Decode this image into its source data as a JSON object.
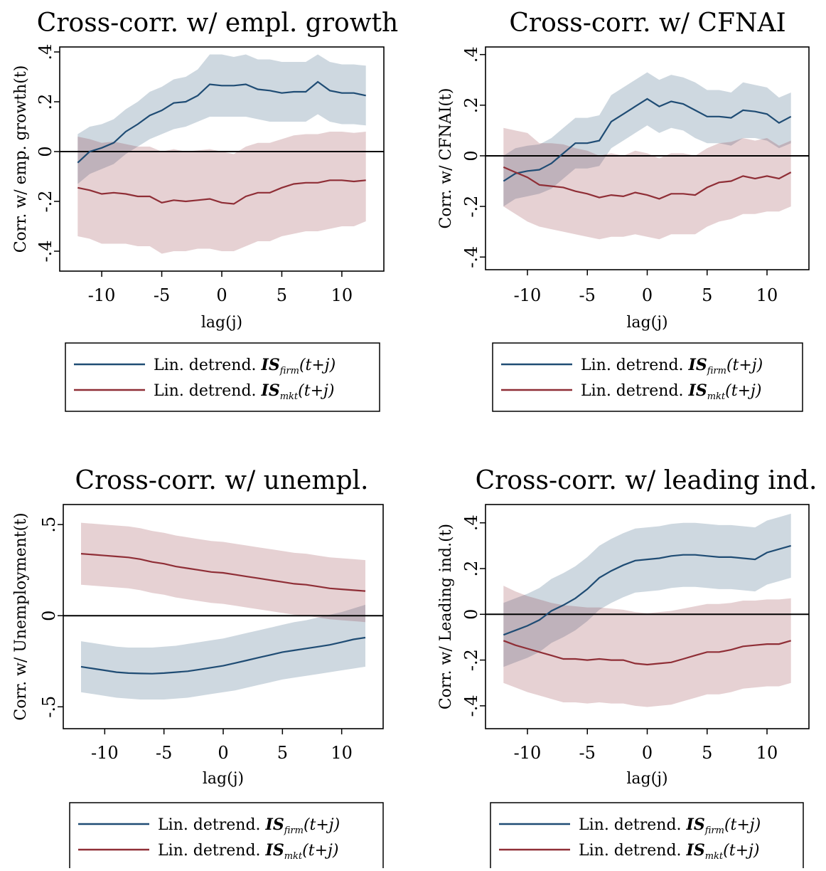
{
  "chart_data": [
    {
      "type": "line",
      "title": "Cross-corr. w/ empl. growth",
      "xlabel": "lag(j)",
      "ylabel": "Corr. w/ emp. growth(t)",
      "xlim": [
        -13.5,
        13.5
      ],
      "ylim": [
        -0.48,
        0.42
      ],
      "xticks": [
        "-10",
        "-5",
        "0",
        "5",
        "10"
      ],
      "yticks": [
        "-.4",
        "-.2",
        "0",
        ".2",
        ".4"
      ],
      "x": [
        -12,
        -11,
        -10,
        -9,
        -8,
        -7,
        -6,
        -5,
        -4,
        -3,
        -2,
        -1,
        0,
        1,
        2,
        3,
        4,
        5,
        6,
        7,
        8,
        9,
        10,
        11,
        12
      ],
      "series": [
        {
          "name": "Lin. detrend. IS_firm(t+j)",
          "color": "#1f4c74",
          "values": [
            -0.045,
            0.0,
            0.015,
            0.035,
            0.08,
            0.11,
            0.145,
            0.165,
            0.195,
            0.2,
            0.225,
            0.27,
            0.265,
            0.265,
            0.27,
            0.25,
            0.245,
            0.235,
            0.24,
            0.24,
            0.28,
            0.245,
            0.235,
            0.235,
            0.225
          ],
          "lower": [
            -0.13,
            -0.09,
            -0.07,
            -0.05,
            -0.01,
            0.02,
            0.05,
            0.07,
            0.09,
            0.1,
            0.12,
            0.14,
            0.14,
            0.14,
            0.14,
            0.13,
            0.12,
            0.12,
            0.12,
            0.12,
            0.15,
            0.12,
            0.11,
            0.11,
            0.105
          ],
          "upper": [
            0.07,
            0.1,
            0.11,
            0.13,
            0.17,
            0.2,
            0.24,
            0.26,
            0.29,
            0.3,
            0.33,
            0.39,
            0.39,
            0.38,
            0.39,
            0.37,
            0.37,
            0.36,
            0.36,
            0.36,
            0.39,
            0.36,
            0.35,
            0.35,
            0.345
          ]
        },
        {
          "name": "Lin. detrend. IS_mkt(t+j)",
          "color": "#8f2e36",
          "values": [
            -0.145,
            -0.155,
            -0.17,
            -0.165,
            -0.17,
            -0.18,
            -0.18,
            -0.205,
            -0.195,
            -0.2,
            -0.195,
            -0.19,
            -0.205,
            -0.21,
            -0.18,
            -0.165,
            -0.165,
            -0.145,
            -0.13,
            -0.125,
            -0.125,
            -0.115,
            -0.115,
            -0.12,
            -0.115
          ],
          "lower": [
            -0.34,
            -0.35,
            -0.37,
            -0.37,
            -0.37,
            -0.38,
            -0.38,
            -0.41,
            -0.4,
            -0.4,
            -0.39,
            -0.39,
            -0.4,
            -0.4,
            -0.38,
            -0.36,
            -0.36,
            -0.34,
            -0.33,
            -0.32,
            -0.32,
            -0.31,
            -0.3,
            -0.3,
            -0.28
          ],
          "upper": [
            0.06,
            0.05,
            0.035,
            0.04,
            0.03,
            0.02,
            0.02,
            0.0,
            0.01,
            0.0,
            0.005,
            0.01,
            0.0,
            -0.01,
            0.02,
            0.035,
            0.035,
            0.05,
            0.065,
            0.07,
            0.07,
            0.08,
            0.08,
            0.075,
            0.08
          ]
        }
      ]
    },
    {
      "type": "line",
      "title": "Cross-corr. w/ CFNAI",
      "xlabel": "lag(j)",
      "ylabel": "Corr. w/ CFNAI(t)",
      "xlim": [
        -13.5,
        13.5
      ],
      "ylim": [
        -0.45,
        0.43
      ],
      "xticks": [
        "-10",
        "-5",
        "0",
        "5",
        "10"
      ],
      "yticks": [
        "-.4",
        "-.2",
        "0",
        ".2",
        ".4"
      ],
      "x": [
        -12,
        -11,
        -10,
        -9,
        -8,
        -7,
        -6,
        -5,
        -4,
        -3,
        -2,
        -1,
        0,
        1,
        2,
        3,
        4,
        5,
        6,
        7,
        8,
        9,
        10,
        11,
        12
      ],
      "series": [
        {
          "name": "Lin. detrend. IS_firm(t+j)",
          "color": "#1f4c74",
          "values": [
            -0.1,
            -0.07,
            -0.06,
            -0.055,
            -0.03,
            0.01,
            0.05,
            0.05,
            0.06,
            0.135,
            0.165,
            0.195,
            0.225,
            0.195,
            0.215,
            0.205,
            0.18,
            0.155,
            0.155,
            0.15,
            0.18,
            0.175,
            0.165,
            0.13,
            0.155
          ],
          "lower": [
            -0.2,
            -0.17,
            -0.16,
            -0.15,
            -0.13,
            -0.09,
            -0.05,
            -0.05,
            -0.04,
            0.03,
            0.06,
            0.09,
            0.12,
            0.09,
            0.11,
            0.1,
            0.07,
            0.05,
            0.05,
            0.04,
            0.07,
            0.07,
            0.06,
            0.03,
            0.05
          ],
          "upper": [
            0.0,
            0.03,
            0.04,
            0.045,
            0.07,
            0.11,
            0.15,
            0.15,
            0.16,
            0.24,
            0.27,
            0.3,
            0.33,
            0.3,
            0.32,
            0.31,
            0.29,
            0.26,
            0.26,
            0.25,
            0.29,
            0.28,
            0.27,
            0.23,
            0.25
          ]
        },
        {
          "name": "Lin. detrend. IS_mkt(t+j)",
          "color": "#8f2e36",
          "values": [
            -0.045,
            -0.065,
            -0.085,
            -0.115,
            -0.12,
            -0.125,
            -0.14,
            -0.15,
            -0.165,
            -0.155,
            -0.16,
            -0.145,
            -0.155,
            -0.17,
            -0.15,
            -0.15,
            -0.155,
            -0.125,
            -0.105,
            -0.1,
            -0.08,
            -0.09,
            -0.08,
            -0.09,
            -0.065
          ],
          "lower": [
            -0.2,
            -0.23,
            -0.26,
            -0.28,
            -0.29,
            -0.3,
            -0.31,
            -0.32,
            -0.33,
            -0.32,
            -0.32,
            -0.31,
            -0.32,
            -0.33,
            -0.31,
            -0.31,
            -0.31,
            -0.28,
            -0.26,
            -0.25,
            -0.23,
            -0.23,
            -0.22,
            -0.22,
            -0.2
          ],
          "upper": [
            0.11,
            0.1,
            0.09,
            0.05,
            0.05,
            0.045,
            0.03,
            0.02,
            0.0,
            0.01,
            0.0,
            0.02,
            0.01,
            -0.01,
            0.01,
            0.01,
            0.0,
            0.03,
            0.05,
            0.055,
            0.07,
            0.06,
            0.07,
            0.04,
            0.06
          ]
        }
      ]
    },
    {
      "type": "line",
      "title": "Cross-corr. w/ unempl.",
      "xlabel": "lag(j)",
      "ylabel": "Corr. w/ Unemployment(t)",
      "xlim": [
        -13.5,
        13.5
      ],
      "ylim": [
        -0.62,
        0.61
      ],
      "xticks": [
        "-10",
        "-5",
        "0",
        "5",
        "10"
      ],
      "yticks": [
        "-.5",
        "0",
        ".5"
      ],
      "x": [
        -12,
        -11,
        -10,
        -9,
        -8,
        -7,
        -6,
        -5,
        -4,
        -3,
        -2,
        -1,
        0,
        1,
        2,
        3,
        4,
        5,
        6,
        7,
        8,
        9,
        10,
        11,
        12
      ],
      "series": [
        {
          "name": "Lin. detrend. IS_firm(t+j)",
          "color": "#1f4c74",
          "values": [
            -0.28,
            -0.29,
            -0.3,
            -0.31,
            -0.315,
            -0.317,
            -0.318,
            -0.315,
            -0.31,
            -0.305,
            -0.295,
            -0.285,
            -0.275,
            -0.26,
            -0.245,
            -0.23,
            -0.215,
            -0.2,
            -0.19,
            -0.18,
            -0.17,
            -0.16,
            -0.145,
            -0.13,
            -0.12
          ],
          "lower": [
            -0.42,
            -0.43,
            -0.44,
            -0.45,
            -0.455,
            -0.46,
            -0.46,
            -0.46,
            -0.455,
            -0.45,
            -0.44,
            -0.43,
            -0.42,
            -0.41,
            -0.395,
            -0.38,
            -0.365,
            -0.35,
            -0.34,
            -0.33,
            -0.32,
            -0.31,
            -0.3,
            -0.29,
            -0.28
          ],
          "upper": [
            -0.14,
            -0.15,
            -0.16,
            -0.17,
            -0.175,
            -0.175,
            -0.175,
            -0.17,
            -0.165,
            -0.155,
            -0.145,
            -0.135,
            -0.125,
            -0.11,
            -0.095,
            -0.08,
            -0.065,
            -0.05,
            -0.035,
            -0.025,
            -0.01,
            0.005,
            0.02,
            0.04,
            0.06
          ]
        },
        {
          "name": "Lin. detrend. IS_mkt(t+j)",
          "color": "#8f2e36",
          "values": [
            0.34,
            0.335,
            0.33,
            0.325,
            0.32,
            0.31,
            0.295,
            0.285,
            0.27,
            0.26,
            0.25,
            0.24,
            0.235,
            0.225,
            0.215,
            0.205,
            0.195,
            0.185,
            0.175,
            0.17,
            0.16,
            0.15,
            0.145,
            0.14,
            0.135
          ],
          "lower": [
            0.17,
            0.165,
            0.16,
            0.155,
            0.15,
            0.14,
            0.125,
            0.115,
            0.1,
            0.09,
            0.08,
            0.07,
            0.065,
            0.055,
            0.045,
            0.035,
            0.025,
            0.015,
            0.005,
            0.0,
            -0.01,
            -0.02,
            -0.025,
            -0.03,
            -0.035
          ],
          "upper": [
            0.51,
            0.505,
            0.5,
            0.495,
            0.49,
            0.48,
            0.465,
            0.455,
            0.44,
            0.43,
            0.42,
            0.41,
            0.405,
            0.395,
            0.385,
            0.375,
            0.365,
            0.355,
            0.345,
            0.34,
            0.33,
            0.32,
            0.315,
            0.31,
            0.305
          ]
        }
      ]
    },
    {
      "type": "line",
      "title": "Cross-corr. w/ leading ind.",
      "xlabel": "lag(j)",
      "ylabel": "Corr. w/ Leading ind.(t)",
      "xlim": [
        -13.5,
        13.5
      ],
      "ylim": [
        -0.5,
        0.48
      ],
      "xticks": [
        "-10",
        "-5",
        "0",
        "5",
        "10"
      ],
      "yticks": [
        "-.4",
        "-.2",
        "0",
        ".2",
        ".4"
      ],
      "x": [
        -12,
        -11,
        -10,
        -9,
        -8,
        -7,
        -6,
        -5,
        -4,
        -3,
        -2,
        -1,
        0,
        1,
        2,
        3,
        4,
        5,
        6,
        7,
        8,
        9,
        10,
        11,
        12
      ],
      "series": [
        {
          "name": "Lin. detrend. IS_firm(t+j)",
          "color": "#1f4c74",
          "values": [
            -0.09,
            -0.07,
            -0.05,
            -0.025,
            0.015,
            0.04,
            0.07,
            0.11,
            0.16,
            0.19,
            0.215,
            0.235,
            0.24,
            0.245,
            0.255,
            0.26,
            0.26,
            0.255,
            0.25,
            0.25,
            0.245,
            0.24,
            0.27,
            0.285,
            0.3
          ],
          "lower": [
            -0.23,
            -0.21,
            -0.19,
            -0.165,
            -0.125,
            -0.1,
            -0.07,
            -0.03,
            0.02,
            0.05,
            0.075,
            0.095,
            0.1,
            0.105,
            0.115,
            0.12,
            0.12,
            0.115,
            0.11,
            0.11,
            0.105,
            0.1,
            0.13,
            0.145,
            0.16
          ],
          "upper": [
            0.05,
            0.07,
            0.09,
            0.115,
            0.155,
            0.18,
            0.21,
            0.25,
            0.3,
            0.33,
            0.355,
            0.375,
            0.38,
            0.385,
            0.395,
            0.4,
            0.4,
            0.395,
            0.39,
            0.39,
            0.385,
            0.38,
            0.41,
            0.425,
            0.44
          ]
        },
        {
          "name": "Lin. detrend. IS_mkt(t+j)",
          "color": "#8f2e36",
          "values": [
            -0.115,
            -0.135,
            -0.15,
            -0.165,
            -0.18,
            -0.195,
            -0.195,
            -0.2,
            -0.195,
            -0.2,
            -0.2,
            -0.215,
            -0.22,
            -0.215,
            -0.21,
            -0.195,
            -0.18,
            -0.165,
            -0.165,
            -0.155,
            -0.14,
            -0.135,
            -0.13,
            -0.13,
            -0.115
          ],
          "lower": [
            -0.3,
            -0.32,
            -0.34,
            -0.355,
            -0.37,
            -0.385,
            -0.385,
            -0.39,
            -0.385,
            -0.39,
            -0.39,
            -0.4,
            -0.405,
            -0.4,
            -0.395,
            -0.38,
            -0.365,
            -0.35,
            -0.35,
            -0.34,
            -0.325,
            -0.32,
            -0.315,
            -0.315,
            -0.3
          ],
          "upper": [
            0.125,
            0.1,
            0.08,
            0.065,
            0.05,
            0.04,
            0.035,
            0.03,
            0.03,
            0.025,
            0.02,
            0.01,
            0.005,
            0.01,
            0.015,
            0.025,
            0.035,
            0.045,
            0.045,
            0.05,
            0.06,
            0.06,
            0.065,
            0.065,
            0.07
          ]
        }
      ]
    }
  ],
  "legend": {
    "items": [
      {
        "prefix": "Lin. detrend. ",
        "is": "IS",
        "sub": "firm",
        "suffix": "(t+j)",
        "color": "#1f4c74"
      },
      {
        "prefix": "Lin. detrend. ",
        "is": "IS",
        "sub": "mkt",
        "suffix": "(t+j)",
        "color": "#8f2e36"
      }
    ]
  }
}
